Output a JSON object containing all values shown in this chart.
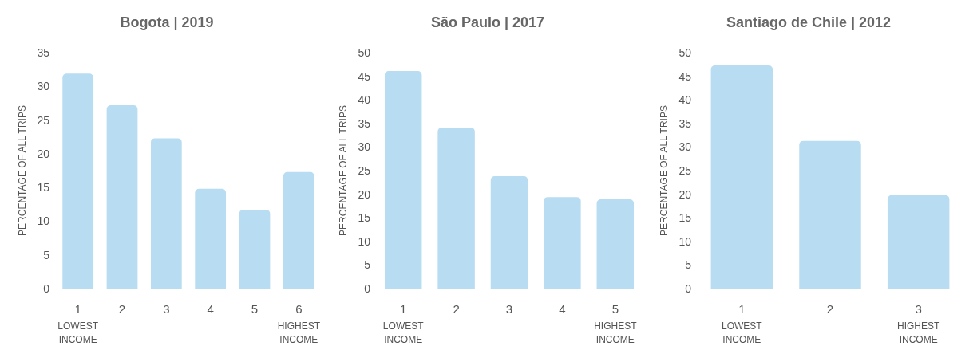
{
  "chart_data": [
    {
      "type": "bar",
      "title": "Bogota | 2019",
      "ylabel": "PERCENTAGE OF ALL TRIPS",
      "categories": [
        "1",
        "2",
        "3",
        "4",
        "5",
        "6"
      ],
      "values": [
        31.9,
        27.2,
        22.3,
        14.8,
        11.7,
        17.3
      ],
      "color": "#b8dcf2",
      "ylim": [
        0,
        35
      ],
      "yticks": [
        0,
        5,
        10,
        15,
        20,
        25,
        30,
        35
      ],
      "grid": false,
      "annotations": [
        "LOWEST INCOME",
        "HIGHEST INCOME"
      ]
    },
    {
      "type": "bar",
      "title": "São Paulo | 2017",
      "ylabel": "PERCENTAGE OF ALL TRIPS",
      "categories": [
        "1",
        "2",
        "3",
        "4",
        "5"
      ],
      "values": [
        46.1,
        34.1,
        23.8,
        19.4,
        18.9
      ],
      "color": "#b8dcf2",
      "ylim": [
        0,
        50
      ],
      "yticks": [
        0,
        5,
        10,
        15,
        20,
        25,
        30,
        35,
        40,
        45,
        50
      ],
      "grid": false,
      "annotations": [
        "LOWEST INCOME",
        "HIGHEST INCOME"
      ]
    },
    {
      "type": "bar",
      "title": "Santiago de Chile | 2012",
      "ylabel": "PERCENTAGE OF ALL TRIPS",
      "categories": [
        "1",
        "2",
        "3"
      ],
      "values": [
        47.3,
        31.3,
        19.8
      ],
      "color": "#b8dcf2",
      "ylim": [
        0,
        50
      ],
      "yticks": [
        0,
        5,
        10,
        15,
        20,
        25,
        30,
        35,
        40,
        45,
        50
      ],
      "grid": false,
      "annotations": [
        "LOWEST INCOME",
        "HIGHEST INCOME"
      ]
    }
  ]
}
